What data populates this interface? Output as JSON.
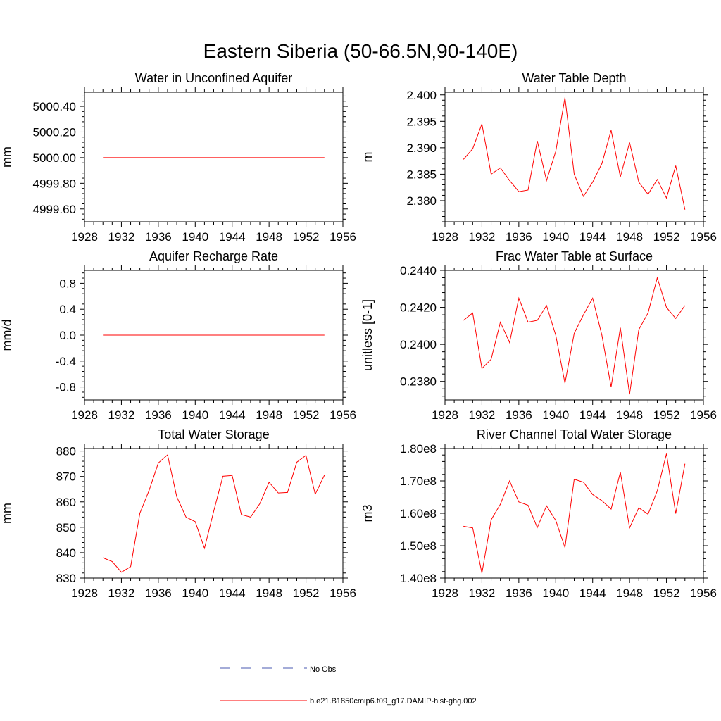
{
  "title": "Eastern Siberia (50-66.5N,90-140E)",
  "colors": {
    "model": "#ff0000",
    "obs": "#4a5ab0"
  },
  "legend": {
    "obs_label": "No Obs",
    "model_label": "b.e21.B1850cmip6.f09_g17.DAMIP-hist-ghg.002"
  },
  "chart_data": [
    {
      "type": "line",
      "title": "Water in Unconfined Aquifer",
      "ylabel": "mm",
      "xlim": [
        1928,
        1956
      ],
      "ylim": [
        4999.5,
        5000.51
      ],
      "xticks": [
        1928,
        1932,
        1936,
        1940,
        1944,
        1948,
        1952,
        1956
      ],
      "yticks": [
        4999.6,
        4999.8,
        5000.0,
        5000.2,
        5000.4
      ],
      "ytick_labels": [
        "4999.60",
        "4999.80",
        "5000.00",
        "5000.20",
        "5000.40"
      ],
      "x": [
        1930,
        1931,
        1932,
        1933,
        1934,
        1935,
        1936,
        1937,
        1938,
        1939,
        1940,
        1941,
        1942,
        1943,
        1944,
        1945,
        1946,
        1947,
        1948,
        1949,
        1950,
        1951,
        1952,
        1953,
        1954
      ],
      "y": [
        5000.0,
        5000.0,
        5000.0,
        5000.0,
        5000.0,
        5000.0,
        5000.0,
        5000.0,
        5000.0,
        5000.0,
        5000.0,
        5000.0,
        5000.0,
        5000.0,
        5000.0,
        5000.0,
        5000.0,
        5000.0,
        5000.0,
        5000.0,
        5000.0,
        5000.0,
        5000.0,
        5000.0,
        5000.0
      ]
    },
    {
      "type": "line",
      "title": "Water Table Depth",
      "ylabel": "m",
      "xlim": [
        1928,
        1956
      ],
      "ylim": [
        2.376,
        2.4005
      ],
      "xticks": [
        1928,
        1932,
        1936,
        1940,
        1944,
        1948,
        1952,
        1956
      ],
      "yticks": [
        2.38,
        2.385,
        2.39,
        2.395,
        2.4
      ],
      "ytick_labels": [
        "2.380",
        "2.385",
        "2.390",
        "2.395",
        "2.400"
      ],
      "x": [
        1930,
        1931,
        1932,
        1933,
        1934,
        1935,
        1936,
        1937,
        1938,
        1939,
        1940,
        1941,
        1942,
        1943,
        1944,
        1945,
        1946,
        1947,
        1948,
        1949,
        1950,
        1951,
        1952,
        1953,
        1954
      ],
      "y": [
        2.3878,
        2.3898,
        2.3945,
        2.385,
        2.3862,
        2.3838,
        2.3817,
        2.382,
        2.3913,
        2.3838,
        2.3893,
        2.3995,
        2.385,
        2.3808,
        2.3835,
        2.387,
        2.3933,
        2.3845,
        2.391,
        2.3835,
        2.3812,
        2.384,
        2.3805,
        2.3866,
        2.3783
      ]
    },
    {
      "type": "line",
      "title": "Aquifer Recharge Rate",
      "ylabel": "mm/d",
      "xlim": [
        1928,
        1956
      ],
      "ylim": [
        -1.0,
        1.0
      ],
      "xticks": [
        1928,
        1932,
        1936,
        1940,
        1944,
        1948,
        1952,
        1956
      ],
      "yticks": [
        -0.8,
        -0.4,
        0.0,
        0.4,
        0.8
      ],
      "ytick_labels": [
        "-0.8",
        "-0.4",
        "0.0",
        "0.4",
        "0.8"
      ],
      "x": [
        1930,
        1931,
        1932,
        1933,
        1934,
        1935,
        1936,
        1937,
        1938,
        1939,
        1940,
        1941,
        1942,
        1943,
        1944,
        1945,
        1946,
        1947,
        1948,
        1949,
        1950,
        1951,
        1952,
        1953,
        1954
      ],
      "y": [
        0,
        0,
        0,
        0,
        0,
        0,
        0,
        0,
        0,
        0,
        0,
        0,
        0,
        0,
        0,
        0,
        0,
        0,
        0,
        0,
        0,
        0,
        0,
        0,
        0
      ]
    },
    {
      "type": "line",
      "title": "Frac Water Table at Surface",
      "ylabel": "unitless [0-1]",
      "xlim": [
        1928,
        1956
      ],
      "ylim": [
        0.237,
        0.244
      ],
      "xticks": [
        1928,
        1932,
        1936,
        1940,
        1944,
        1948,
        1952,
        1956
      ],
      "yticks": [
        0.238,
        0.24,
        0.242,
        0.244
      ],
      "ytick_labels": [
        "0.2380",
        "0.2400",
        "0.2420",
        "0.2440"
      ],
      "x": [
        1930,
        1931,
        1932,
        1933,
        1934,
        1935,
        1936,
        1937,
        1938,
        1939,
        1940,
        1941,
        1942,
        1943,
        1944,
        1945,
        1946,
        1947,
        1948,
        1949,
        1950,
        1951,
        1952,
        1953,
        1954
      ],
      "y": [
        0.2413,
        0.2417,
        0.2387,
        0.2392,
        0.2412,
        0.2401,
        0.2425,
        0.2412,
        0.2413,
        0.2421,
        0.2405,
        0.2379,
        0.2406,
        0.2416,
        0.2425,
        0.2405,
        0.2377,
        0.2409,
        0.2373,
        0.2408,
        0.2417,
        0.2436,
        0.242,
        0.2414,
        0.2421
      ]
    },
    {
      "type": "line",
      "title": "Total Water Storage",
      "ylabel": "mm",
      "xlim": [
        1928,
        1956
      ],
      "ylim": [
        830,
        881
      ],
      "xticks": [
        1928,
        1932,
        1936,
        1940,
        1944,
        1948,
        1952,
        1956
      ],
      "yticks": [
        830,
        840,
        850,
        860,
        870,
        880
      ],
      "ytick_labels": [
        "830",
        "840",
        "850",
        "860",
        "870",
        "880"
      ],
      "x": [
        1930,
        1931,
        1932,
        1933,
        1934,
        1935,
        1936,
        1937,
        1938,
        1939,
        1940,
        1941,
        1942,
        1943,
        1944,
        1945,
        1946,
        1947,
        1948,
        1949,
        1950,
        1951,
        1952,
        1953,
        1954
      ],
      "y": [
        838,
        836.5,
        832.3,
        834.5,
        855.5,
        864.5,
        875.3,
        878.5,
        862,
        854,
        852.2,
        841.7,
        856.3,
        870.1,
        870.4,
        855,
        854,
        859.3,
        867.7,
        863.5,
        863.7,
        875.6,
        878.3,
        863,
        870.5
      ]
    },
    {
      "type": "line",
      "title": "River Channel Total Water Storage",
      "ylabel": "m3",
      "xlim": [
        1928,
        1956
      ],
      "ylim": [
        140000000,
        180000000
      ],
      "xticks": [
        1928,
        1932,
        1936,
        1940,
        1944,
        1948,
        1952,
        1956
      ],
      "yticks": [
        140000000,
        150000000,
        160000000,
        170000000,
        180000000
      ],
      "ytick_labels": [
        "1.40e8",
        "1.50e8",
        "1.60e8",
        "1.70e8",
        "1.80e8"
      ],
      "x": [
        1930,
        1931,
        1932,
        1933,
        1934,
        1935,
        1936,
        1937,
        1938,
        1939,
        1940,
        1941,
        1942,
        1943,
        1944,
        1945,
        1946,
        1947,
        1948,
        1949,
        1950,
        1951,
        1952,
        1953,
        1954
      ],
      "y": [
        156000000,
        155500000,
        141500000,
        158000000,
        162800000,
        170000000,
        163500000,
        162500000,
        155600000,
        162300000,
        157800000,
        149400000,
        170500000,
        169600000,
        165800000,
        163900000,
        161300000,
        172700000,
        155500000,
        161700000,
        159700000,
        166900000,
        178400000,
        159900000,
        175300000
      ]
    }
  ]
}
